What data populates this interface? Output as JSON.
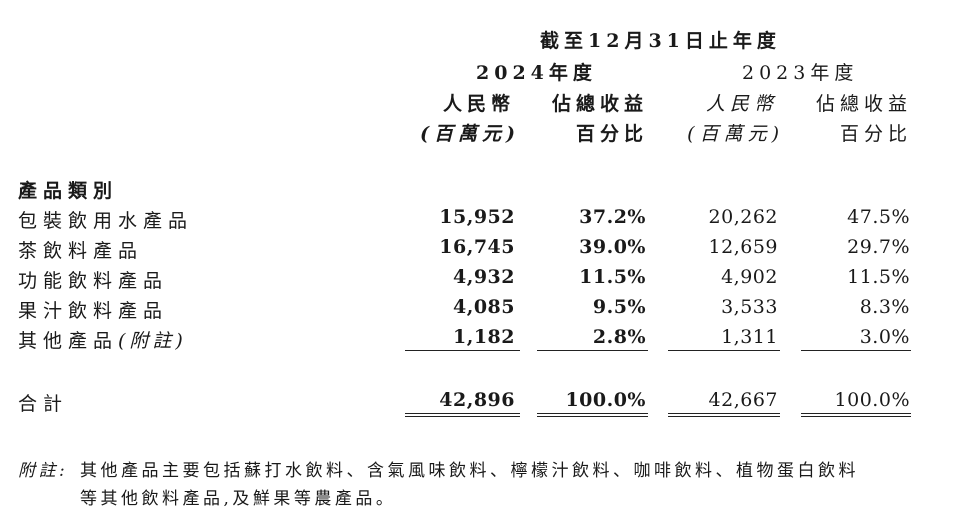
{
  "header": {
    "period": "截至12月31日止年度",
    "year_2024": "2024年度",
    "year_2023": "2023年度",
    "col_rmb": "人民幣",
    "col_rmb_unit": "(百萬元)",
    "col_pct": "佔總收益",
    "col_pct_unit": "百分比"
  },
  "section_title": "產品類別",
  "rows": [
    {
      "label": "包裝飲用水產品",
      "v2024": "15,952",
      "p2024": "37.2%",
      "v2023": "20,262",
      "p2023": "47.5%"
    },
    {
      "label": "茶飲料產品",
      "v2024": "16,745",
      "p2024": "39.0%",
      "v2023": "12,659",
      "p2023": "29.7%"
    },
    {
      "label": "功能飲料產品",
      "v2024": "4,932",
      "p2024": "11.5%",
      "v2023": "4,902",
      "p2023": "11.5%"
    },
    {
      "label": "果汁飲料產品",
      "v2024": "4,085",
      "p2024": "9.5%",
      "v2023": "3,533",
      "p2023": "8.3%"
    },
    {
      "label": "其他產品",
      "label_note": "(附註)",
      "v2024": "1,182",
      "p2024": "2.8%",
      "v2023": "1,311",
      "p2023": "3.0%"
    }
  ],
  "total": {
    "label": "合計",
    "v2024": "42,896",
    "p2024": "100.0%",
    "v2023": "42,667",
    "p2023": "100.0%"
  },
  "footnote": {
    "prefix": "附註:",
    "line1": "其他產品主要包括蘇打水飲料、含氣風味飲料、檸檬汁飲料、咖啡飲料、植物蛋白飲料",
    "line2": "等其他飲料產品,及鮮果等農產品。"
  }
}
